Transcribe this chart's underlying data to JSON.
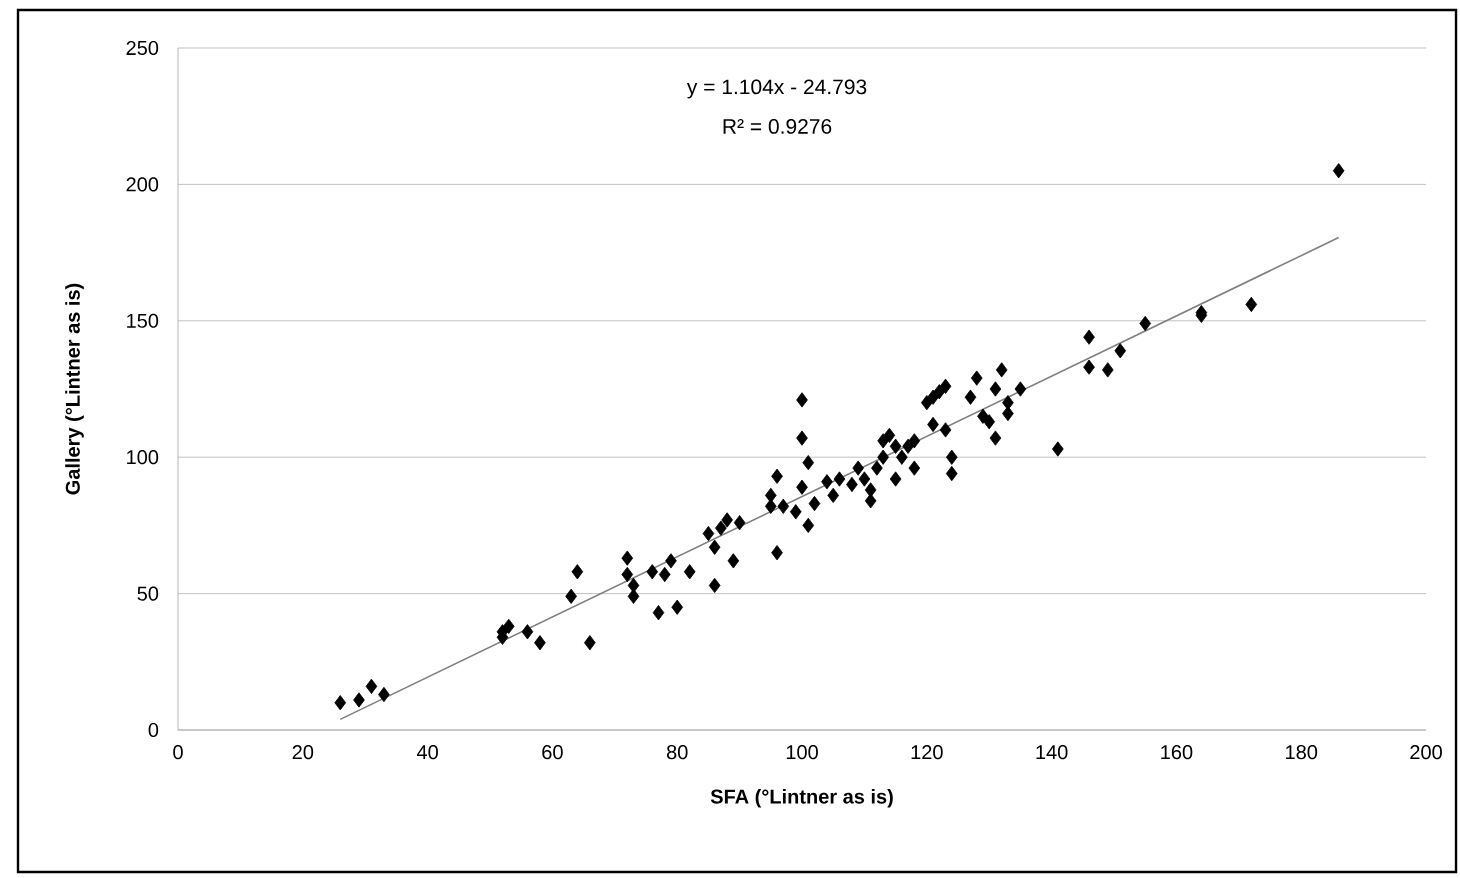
{
  "chart_data": {
    "type": "scatter",
    "xlabel": "SFA (°Lintner as is)",
    "ylabel": "Gallery (°Lintner as is)",
    "annotations": [
      "y = 1.104x - 24.793",
      "R² = 0.9276"
    ],
    "xlim": [
      0,
      200
    ],
    "ylim": [
      0,
      250
    ],
    "xticks": [
      0,
      20,
      40,
      60,
      80,
      100,
      120,
      140,
      160,
      180,
      200
    ],
    "yticks": [
      0,
      50,
      100,
      150,
      200,
      250
    ],
    "grid": "y",
    "marker": "diamond",
    "series": [
      {
        "color": "#000000",
        "x": [
          26,
          29,
          31,
          33,
          52,
          52,
          53,
          56,
          58,
          63,
          64,
          66,
          72,
          72,
          73,
          73,
          76,
          77,
          78,
          79,
          80,
          82,
          85,
          86,
          86,
          87,
          88,
          89,
          90,
          95,
          95,
          96,
          96,
          97,
          99,
          100,
          100,
          100,
          101,
          101,
          102,
          104,
          105,
          106,
          108,
          109,
          110,
          111,
          111,
          112,
          113,
          113,
          114,
          115,
          115,
          116,
          117,
          118,
          118,
          120,
          121,
          121,
          122,
          123,
          123,
          124,
          124,
          127,
          128,
          129,
          130,
          131,
          131,
          132,
          133,
          133,
          135,
          141,
          146,
          146,
          149,
          151,
          155,
          164,
          164,
          172,
          186
        ],
        "values": [
          10,
          11,
          16,
          13,
          34,
          36,
          38,
          36,
          32,
          49,
          58,
          32,
          63,
          57,
          53,
          49,
          58,
          43,
          57,
          62,
          45,
          58,
          72,
          53,
          67,
          74,
          77,
          62,
          76,
          86,
          82,
          65,
          93,
          82,
          80,
          121,
          107,
          89,
          98,
          75,
          83,
          91,
          86,
          92,
          90,
          96,
          92,
          88,
          84,
          96,
          106,
          100,
          108,
          104,
          92,
          100,
          104,
          106,
          96,
          120,
          112,
          122,
          124,
          126,
          110,
          100,
          94,
          122,
          129,
          115,
          113,
          125,
          107,
          132,
          120,
          116,
          125,
          103,
          144,
          133,
          132,
          139,
          149,
          152,
          153,
          156,
          205
        ]
      },
      {
        "type": "line",
        "marker": "none",
        "color": "#808080",
        "x": [
          26,
          186
        ],
        "values": [
          3.9,
          180.5
        ]
      }
    ]
  }
}
